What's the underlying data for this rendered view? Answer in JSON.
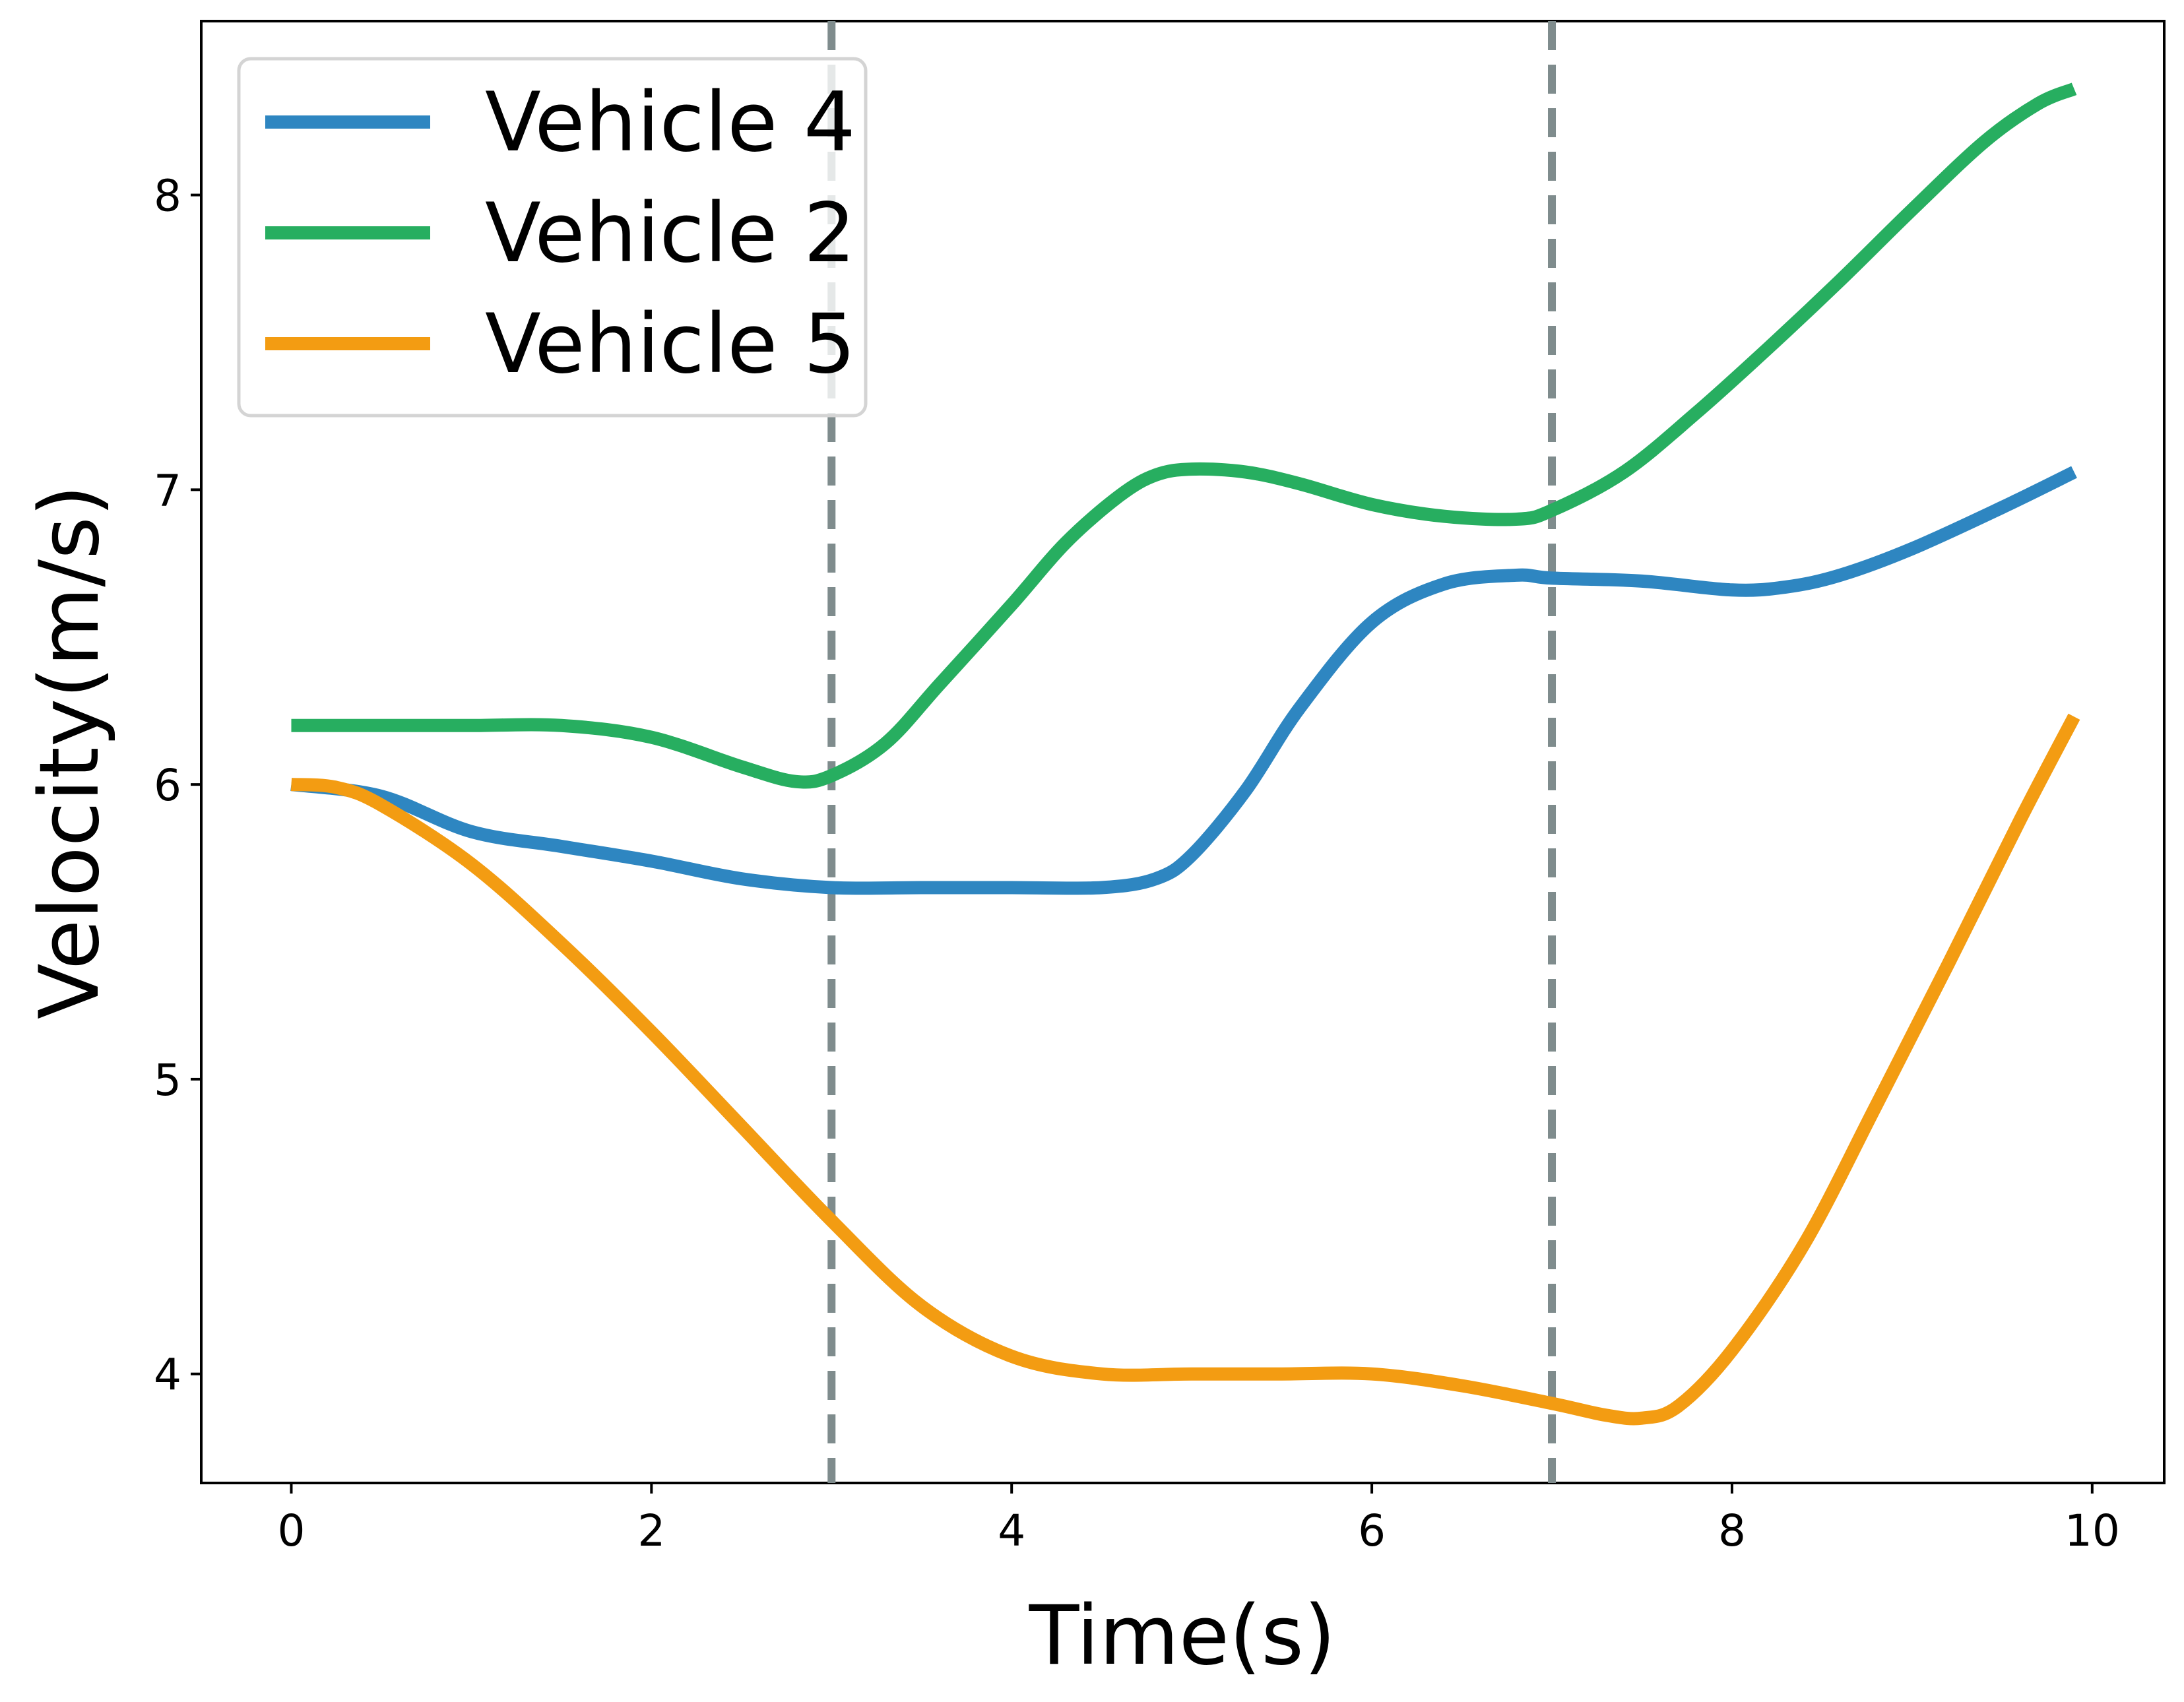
{
  "chart_data": {
    "type": "line",
    "title": "",
    "xlabel": "Time(s)",
    "ylabel": "Velocity(m/s)",
    "xlim": [
      -0.5,
      10.4
    ],
    "ylim": [
      3.63,
      8.59
    ],
    "xticks": [
      0,
      2,
      4,
      6,
      8,
      10
    ],
    "yticks": [
      4,
      5,
      6,
      7,
      8
    ],
    "grid": false,
    "legend_position": "top-left",
    "vlines": [
      {
        "x": 3,
        "color": "#7f8c8d",
        "style": "dashed"
      },
      {
        "x": 7,
        "color": "#7f8c8d",
        "style": "dashed"
      }
    ],
    "series": [
      {
        "name": "Vehicle 4",
        "color": "#2e86c1",
        "x": [
          0,
          0.5,
          1.0,
          1.5,
          2.0,
          2.5,
          3.0,
          3.5,
          4.0,
          4.5,
          4.8,
          5.0,
          5.3,
          5.6,
          6.0,
          6.4,
          6.8,
          7.0,
          7.5,
          8.0,
          8.3,
          8.6,
          9.0,
          9.5,
          9.9
        ],
        "values": [
          6.0,
          5.96,
          5.84,
          5.79,
          5.74,
          5.68,
          5.65,
          5.65,
          5.65,
          5.65,
          5.68,
          5.76,
          5.98,
          6.26,
          6.55,
          6.68,
          6.71,
          6.7,
          6.69,
          6.66,
          6.67,
          6.71,
          6.8,
          6.94,
          7.06
        ]
      },
      {
        "name": "Vehicle 2",
        "color": "#27ae60",
        "x": [
          0,
          0.5,
          1.0,
          1.5,
          2.0,
          2.5,
          2.8,
          3.0,
          3.3,
          3.6,
          4.0,
          4.3,
          4.6,
          4.8,
          5.0,
          5.3,
          5.6,
          6.0,
          6.4,
          6.8,
          7.0,
          7.4,
          7.8,
          8.2,
          8.6,
          9.0,
          9.4,
          9.7,
          9.9
        ],
        "values": [
          6.2,
          6.2,
          6.2,
          6.2,
          6.16,
          6.06,
          6.01,
          6.03,
          6.14,
          6.34,
          6.61,
          6.82,
          6.98,
          7.05,
          7.07,
          7.06,
          7.02,
          6.95,
          6.91,
          6.9,
          6.93,
          7.06,
          7.26,
          7.48,
          7.71,
          7.95,
          8.18,
          8.31,
          8.36
        ]
      },
      {
        "name": "Vehicle 5",
        "color": "#f39c12",
        "x": [
          0,
          0.25,
          0.5,
          1.0,
          1.5,
          2.0,
          2.5,
          3.0,
          3.5,
          4.0,
          4.5,
          5.0,
          5.5,
          6.0,
          6.5,
          7.0,
          7.3,
          7.5,
          7.7,
          8.0,
          8.4,
          8.8,
          9.2,
          9.6,
          9.9
        ],
        "values": [
          6.0,
          5.99,
          5.93,
          5.73,
          5.46,
          5.16,
          4.84,
          4.52,
          4.23,
          4.06,
          4.0,
          4.0,
          4.0,
          4.0,
          3.96,
          3.9,
          3.86,
          3.85,
          3.89,
          4.08,
          4.44,
          4.91,
          5.39,
          5.88,
          6.23
        ]
      }
    ]
  }
}
